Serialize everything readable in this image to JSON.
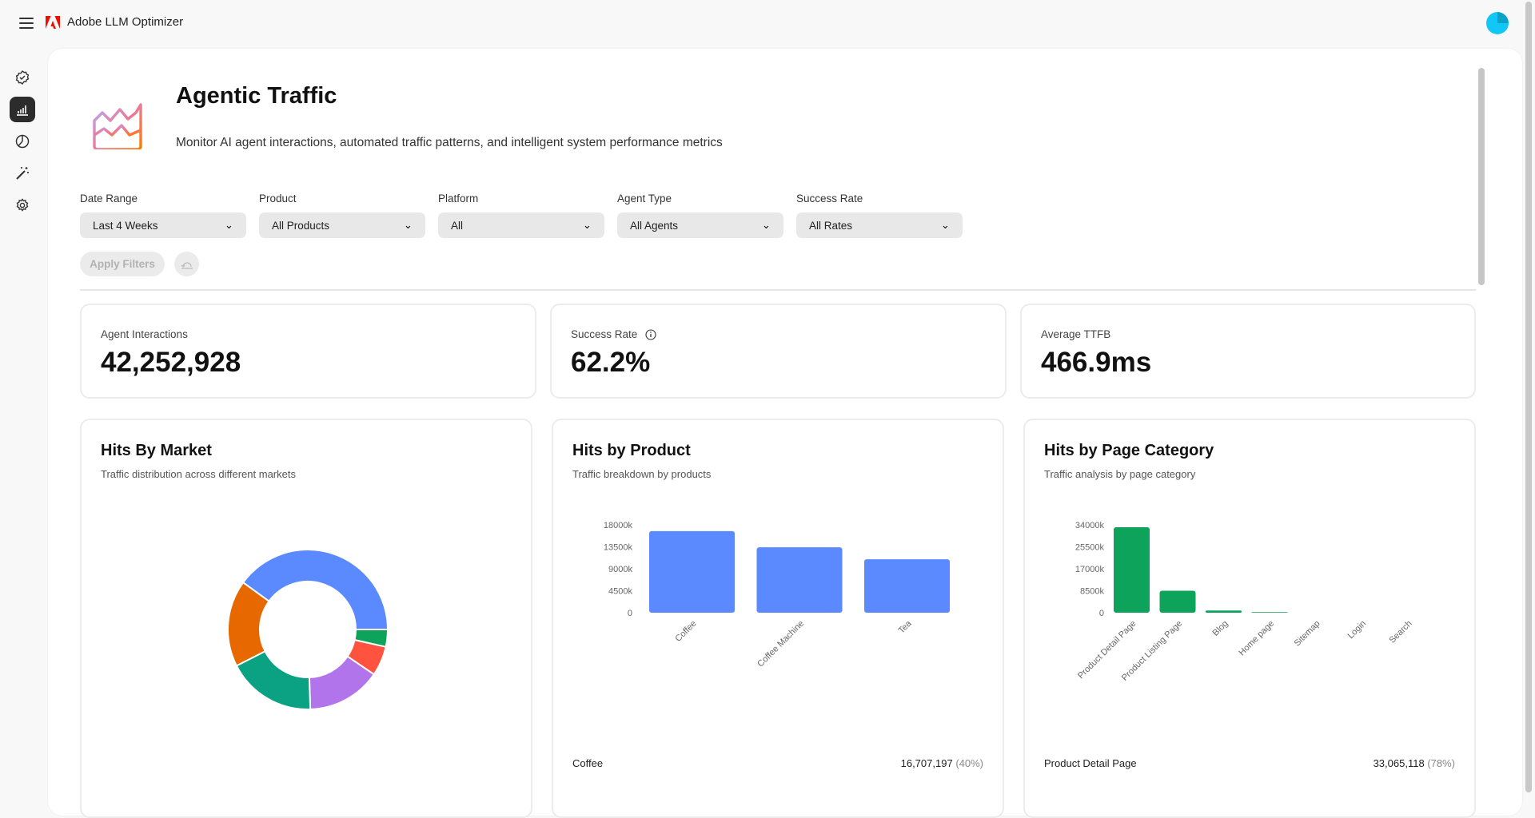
{
  "app": {
    "title": "Adobe LLM Optimizer"
  },
  "sidebar": {
    "items": [
      {
        "name": "opportunities",
        "icon": "badge-check-icon"
      },
      {
        "name": "agentic-traffic",
        "icon": "bar-chart-icon",
        "active": true
      },
      {
        "name": "insights",
        "icon": "pie-chart-icon"
      },
      {
        "name": "optimize",
        "icon": "magic-wand-icon"
      },
      {
        "name": "settings",
        "icon": "gear-icon"
      }
    ]
  },
  "header": {
    "title": "Agentic Traffic",
    "subtitle": "Monitor AI agent interactions, automated traffic patterns, and intelligent system performance metrics"
  },
  "filters": [
    {
      "label": "Date Range",
      "value": "Last 4 Weeks"
    },
    {
      "label": "Product",
      "value": "All Products"
    },
    {
      "label": "Platform",
      "value": "All"
    },
    {
      "label": "Agent Type",
      "value": "All Agents"
    },
    {
      "label": "Success Rate",
      "value": "All Rates"
    }
  ],
  "actions": {
    "apply": "Apply Filters"
  },
  "kpis": [
    {
      "label": "Agent Interactions",
      "value": "42,252,928"
    },
    {
      "label": "Success Rate",
      "value": "62.2%"
    },
    {
      "label": "Average TTFB",
      "value": "466.9ms"
    }
  ],
  "cards": {
    "market": {
      "title": "Hits By Market",
      "subtitle": "Traffic distribution across different markets"
    },
    "product": {
      "title": "Hits by Product",
      "subtitle": "Traffic breakdown by products",
      "top_row": {
        "label": "Coffee",
        "value": "16,707,197",
        "pct": "(40%)"
      }
    },
    "page": {
      "title": "Hits by Page Category",
      "subtitle": "Traffic analysis by page category",
      "top_row": {
        "label": "Product Detail Page",
        "value": "33,065,118",
        "pct": "(78%)"
      }
    }
  },
  "chart_data": [
    {
      "type": "pie",
      "title": "Hits By Market",
      "values": [
        40,
        3.5,
        6,
        15,
        18,
        17.5
      ],
      "colors": [
        "#5b89ff",
        "#0ea35a",
        "#ff5340",
        "#b274ea",
        "#0aa282",
        "#e86800"
      ]
    },
    {
      "type": "bar",
      "title": "Hits by Product",
      "categories": [
        "Coffee",
        "Coffee Machine",
        "Tea"
      ],
      "values": [
        16707197,
        13400000,
        10950000
      ],
      "yticks": [
        "0",
        "4500k",
        "9000k",
        "13500k",
        "18000k"
      ],
      "ylim": [
        0,
        18000000
      ],
      "color": "#5b89ff"
    },
    {
      "type": "bar",
      "title": "Hits by Page Category",
      "categories": [
        "Product Detail Page",
        "Product Listing Page",
        "Blog",
        "Home page",
        "Sitemap",
        "Login",
        "Search"
      ],
      "values": [
        33065118,
        8500000,
        850000,
        250000,
        0,
        0,
        0
      ],
      "yticks": [
        "0",
        "8500k",
        "17000k",
        "25500k",
        "34000k"
      ],
      "ylim": [
        0,
        34000000
      ],
      "color": "#0ea35a"
    }
  ]
}
